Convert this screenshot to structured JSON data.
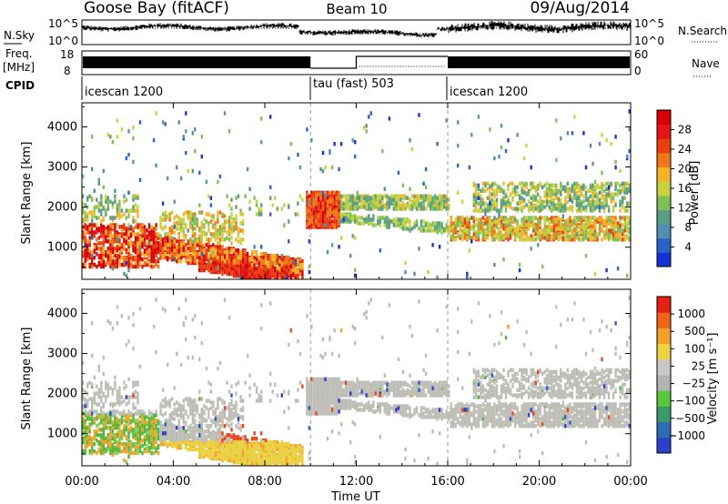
{
  "header": {
    "station": "Goose Bay (fitACF)",
    "beam": "Beam 10",
    "date": "09/Aug/2014"
  },
  "strips": {
    "nsky": {
      "label": "N.Sky",
      "ticks_left": [
        "10^5",
        "10^0"
      ],
      "ticks_right": [
        "10^5",
        "10^0"
      ],
      "right_label": "N.Search"
    },
    "freq": {
      "label_line1": "Freq.",
      "label_line2": "[MHz]",
      "ticks_left": [
        "18",
        "8"
      ],
      "ticks_right": [
        "60",
        "0"
      ],
      "right_label": "Nave"
    },
    "cpid": {
      "label": "CPID",
      "segments": [
        "icescan 1200",
        "tau (fast) 503",
        "icescan 1200"
      ]
    }
  },
  "xaxis": {
    "label": "Time UT",
    "ticks": [
      "00:00",
      "04:00",
      "08:00",
      "12:00",
      "16:00",
      "20:00",
      "00:00"
    ]
  },
  "chart_data": [
    {
      "type": "heatmap",
      "ylabel": "Slant Range [km]",
      "yticks": [
        "1000",
        "2000",
        "3000",
        "4000"
      ],
      "ylim": [
        200,
        4600
      ],
      "xlim_hours": [
        0,
        24
      ],
      "colorbar": {
        "label": "Power [dB]",
        "ticks": [
          "4",
          "8",
          "12",
          "16",
          "20",
          "24",
          "28"
        ],
        "colors": [
          "#1432d2",
          "#2a64c8",
          "#4f8fb4",
          "#5a9e84",
          "#7fbf5a",
          "#c8d23c",
          "#f5b428",
          "#f07818",
          "#e84010",
          "#e61414",
          "#d80000"
        ]
      }
    },
    {
      "type": "heatmap",
      "ylabel": "Slant Range [km]",
      "yticks": [
        "1000",
        "2000",
        "3000",
        "4000"
      ],
      "ylim": [
        200,
        4600
      ],
      "xlim_hours": [
        0,
        24
      ],
      "colorbar": {
        "label": "Velocity [m s⁻¹]",
        "ticks": [
          "1000",
          "500",
          "100",
          "25",
          "−25",
          "−100",
          "−500",
          "−1000"
        ],
        "colors": [
          "#2a40c8",
          "#2f6cb8",
          "#3a9a6a",
          "#5ac83c",
          "#b4b4b4",
          "#c8c8c8",
          "#f0d23c",
          "#f5a028",
          "#f06418",
          "#e61e14"
        ]
      }
    }
  ]
}
